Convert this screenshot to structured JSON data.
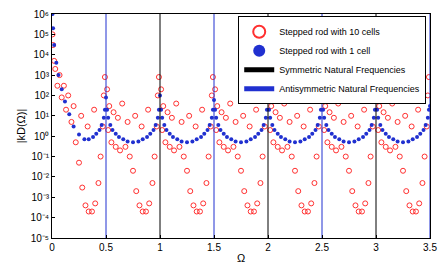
{
  "chart_data": {
    "type": "scatter",
    "x_label": "Ω",
    "y_label": "|kD(Ω)|",
    "log": "y",
    "legend": "top right",
    "grid": false,
    "xlim": [
      0,
      3.5
    ],
    "xticks": [
      0,
      0.5,
      1,
      1.5,
      2,
      2.5,
      3,
      3.5
    ],
    "ylim": [
      1e-05,
      1000000
    ],
    "yticks": [
      {
        "value": 1e-05,
        "label": "10⁻⁵"
      },
      {
        "value": 0.0001,
        "label": "10⁻⁴"
      },
      {
        "value": 0.001,
        "label": "10⁻³"
      },
      {
        "value": 0.01,
        "label": "10⁻²"
      },
      {
        "value": 0.1,
        "label": "10⁻¹"
      },
      {
        "value": 1,
        "label": "10⁰"
      },
      {
        "value": 10,
        "label": "10¹"
      },
      {
        "value": 100,
        "label": "10²"
      },
      {
        "value": 1000,
        "label": "10³"
      },
      {
        "value": 10000,
        "label": "10⁴"
      },
      {
        "value": 100000,
        "label": "10⁵"
      },
      {
        "value": 1000000,
        "label": "10⁶"
      }
    ],
    "series": [
      {
        "name": "Stepped rod with 10 cells",
        "type": "scatter",
        "color": "#ff3030",
        "marker": "circle-open",
        "x": [
          0.005,
          0.01,
          0.02,
          0.03,
          0.05,
          0.07,
          0.09,
          0.11,
          0.13,
          0.15,
          0.18,
          0.2,
          0.22,
          0.25,
          0.27,
          0.28,
          0.31,
          0.33,
          0.34,
          0.37,
          0.39,
          0.4,
          0.43,
          0.45,
          0.47,
          0.48,
          0.49,
          0.51,
          0.52,
          0.53,
          0.55,
          0.57,
          0.59,
          0.61,
          0.63,
          0.65,
          0.68,
          0.7,
          0.72,
          0.75,
          0.77,
          0.78,
          0.81,
          0.83,
          0.84,
          0.87,
          0.89,
          0.9,
          0.93,
          0.95,
          0.97,
          0.98,
          0.99,
          1.01,
          1.02,
          1.03,
          1.05,
          1.07,
          1.09,
          1.11,
          1.13,
          1.15,
          1.18,
          1.2,
          1.22,
          1.25,
          1.27,
          1.28,
          1.31,
          1.33,
          1.34,
          1.37,
          1.39,
          1.4,
          1.43,
          1.45,
          1.47,
          1.48,
          1.49,
          1.51,
          1.52,
          1.53,
          1.55,
          1.57,
          1.59,
          1.61,
          1.63,
          1.65,
          1.68,
          1.7,
          1.72,
          1.75,
          1.77,
          1.78,
          1.81,
          1.83,
          1.84,
          1.87,
          1.89,
          1.9,
          1.93,
          1.95,
          1.97,
          1.98,
          1.99,
          2.01,
          2.02,
          2.03,
          2.05,
          2.07,
          2.09,
          2.11,
          2.13,
          2.15,
          2.18,
          2.2,
          2.22,
          2.25,
          2.27,
          2.28,
          2.31,
          2.33,
          2.34,
          2.37,
          2.39,
          2.4,
          2.43,
          2.45,
          2.47,
          2.48,
          2.49,
          2.51,
          2.52,
          2.53,
          2.55,
          2.57,
          2.59,
          2.61,
          2.63,
          2.65,
          2.68,
          2.7,
          2.72,
          2.75,
          2.77,
          2.78,
          2.81,
          2.83,
          2.84,
          2.87,
          2.89,
          2.9,
          2.93,
          2.95,
          2.97,
          2.98,
          2.99,
          3.01,
          3.02,
          3.03,
          3.05,
          3.07,
          3.09,
          3.11,
          3.13,
          3.15,
          3.18,
          3.2,
          3.22,
          3.25,
          3.27,
          3.28,
          3.31,
          3.33,
          3.34,
          3.37,
          3.39,
          3.4,
          3.43,
          3.45,
          3.47,
          3.48,
          3.49
        ],
        "values": [
          100000,
          30000,
          5000,
          2000,
          300,
          1000,
          80,
          300,
          20,
          100,
          5,
          30,
          0.5,
          0.05,
          10,
          0.003,
          0.0004,
          3,
          0.0002,
          0.0002,
          20,
          0.0005,
          0.005,
          0.1,
          3,
          100,
          800,
          200,
          2,
          30,
          0.5,
          15,
          0.3,
          8,
          0.2,
          40,
          0.3,
          5,
          0.1,
          0.02,
          10,
          0.002,
          0.0004,
          3,
          0.0002,
          0.0002,
          20,
          0.0005,
          0.005,
          0.1,
          3,
          100,
          800,
          200,
          2,
          30,
          0.5,
          15,
          0.3,
          8,
          0.2,
          40,
          0.3,
          5,
          0.1,
          0.02,
          10,
          0.002,
          0.0004,
          3,
          0.0002,
          0.0002,
          20,
          0.0005,
          0.005,
          0.1,
          3,
          100,
          800,
          200,
          2,
          30,
          0.5,
          15,
          0.3,
          8,
          0.2,
          40,
          0.3,
          5,
          0.1,
          0.02,
          10,
          0.002,
          0.0004,
          3,
          0.0002,
          0.0002,
          20,
          0.0005,
          0.005,
          0.1,
          3,
          100,
          800,
          200,
          2,
          30,
          0.5,
          15,
          0.3,
          8,
          0.2,
          40,
          0.3,
          5,
          0.1,
          0.02,
          10,
          0.002,
          0.0004,
          3,
          0.0002,
          0.0002,
          20,
          0.0005,
          0.005,
          0.1,
          3,
          100,
          800,
          200,
          2,
          30,
          0.5,
          15,
          0.3,
          8,
          0.2,
          40,
          0.3,
          5,
          0.1,
          0.02,
          10,
          0.002,
          0.0004,
          3,
          0.0002,
          0.0002,
          20,
          0.0005,
          0.005,
          0.1,
          3,
          100,
          800,
          200,
          2,
          30,
          0.5,
          15,
          0.3,
          8,
          0.2,
          40,
          0.3,
          5,
          0.1,
          0.02,
          10,
          0.002,
          0.0004,
          3,
          0.0002,
          0.0002,
          20,
          0.0005,
          0.005,
          0.1,
          3,
          100,
          800
        ]
      },
      {
        "name": "Stepped rod with 1 cell",
        "type": "scatter",
        "color": "#2030d0",
        "marker": "circle",
        "x": [
          0.005,
          0.01,
          0.02,
          0.04,
          0.06,
          0.09,
          0.12,
          0.16,
          0.2,
          0.25,
          0.3,
          0.34,
          0.38,
          0.41,
          0.44,
          0.46,
          0.48,
          0.49,
          0.5,
          0.51,
          0.52,
          0.54,
          0.56,
          0.59,
          0.62,
          0.66,
          0.7,
          0.75,
          0.8,
          0.84,
          0.88,
          0.91,
          0.94,
          0.96,
          0.98,
          0.99,
          1.0,
          1.01,
          1.02,
          1.04,
          1.06,
          1.09,
          1.12,
          1.16,
          1.2,
          1.25,
          1.3,
          1.34,
          1.38,
          1.41,
          1.44,
          1.46,
          1.48,
          1.49,
          1.5,
          1.51,
          1.52,
          1.54,
          1.56,
          1.59,
          1.62,
          1.66,
          1.7,
          1.75,
          1.8,
          1.84,
          1.88,
          1.91,
          1.94,
          1.96,
          1.98,
          1.99,
          2.0,
          2.01,
          2.02,
          2.04,
          2.06,
          2.09,
          2.12,
          2.16,
          2.2,
          2.25,
          2.3,
          2.34,
          2.38,
          2.41,
          2.44,
          2.46,
          2.48,
          2.49,
          2.5,
          2.51,
          2.52,
          2.54,
          2.56,
          2.59,
          2.62,
          2.66,
          2.7,
          2.75,
          2.8,
          2.84,
          2.88,
          2.91,
          2.94,
          2.96,
          2.98,
          2.99,
          3.0,
          3.01,
          3.02,
          3.04,
          3.06,
          3.09,
          3.12,
          3.16,
          3.2,
          3.25,
          3.3,
          3.34,
          3.38,
          3.41,
          3.44,
          3.46,
          3.48,
          3.49,
          3.5
        ],
        "values": [
          1000000,
          200000,
          30000,
          4000,
          1000,
          200,
          50,
          12,
          3,
          1.2,
          0.7,
          0.7,
          0.9,
          1.3,
          2,
          3.5,
          8,
          20,
          80,
          20,
          8,
          3.5,
          2,
          1.3,
          0.9,
          0.7,
          0.55,
          0.5,
          0.55,
          0.7,
          0.9,
          1.3,
          2,
          3.5,
          8,
          20,
          100,
          20,
          8,
          3.5,
          2,
          1.3,
          0.9,
          0.7,
          0.55,
          0.5,
          0.55,
          0.7,
          0.9,
          1.3,
          2,
          3.5,
          8,
          20,
          60,
          20,
          8,
          3.5,
          2,
          1.3,
          0.9,
          0.7,
          0.55,
          0.5,
          0.55,
          0.7,
          0.9,
          1.3,
          2,
          3.5,
          8,
          20,
          50,
          20,
          8,
          3.5,
          2,
          1.3,
          0.9,
          0.7,
          0.55,
          0.5,
          0.55,
          0.7,
          0.9,
          1.3,
          2,
          3.5,
          8,
          20,
          50,
          20,
          8,
          3.5,
          2,
          1.3,
          0.9,
          0.7,
          0.55,
          0.5,
          0.55,
          0.7,
          0.9,
          1.3,
          2,
          3.5,
          8,
          20,
          100,
          20,
          8,
          3.5,
          2,
          1.3,
          0.9,
          0.7,
          0.55,
          0.5,
          0.55,
          0.7,
          0.9,
          1.3,
          2,
          3.5,
          8,
          20,
          30
        ]
      },
      {
        "name": "Symmetric Natural Frequencies",
        "type": "vline",
        "color": "#000000",
        "line_style": "solid",
        "x": [
          1,
          2,
          3
        ]
      },
      {
        "name": "Antisymmetric Natural Frequencies",
        "type": "vline",
        "color": "#2030d0",
        "line_style": "solid",
        "x": [
          0.5,
          1.5,
          2.5,
          3.5
        ]
      }
    ]
  }
}
